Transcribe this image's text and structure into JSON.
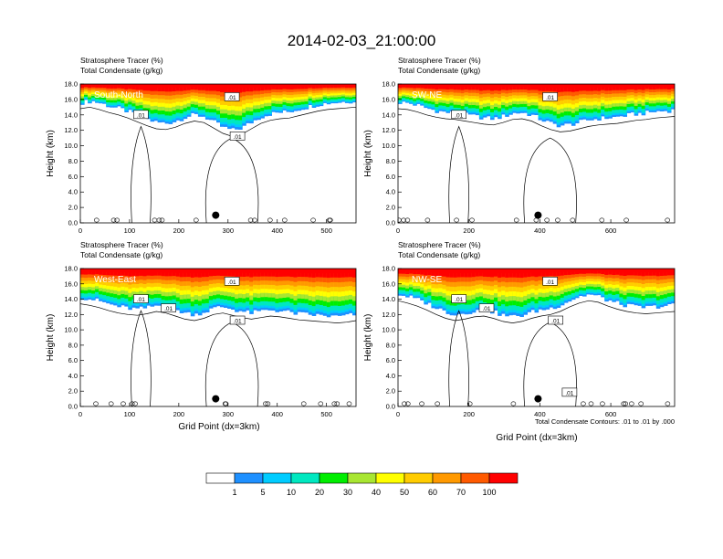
{
  "figure": {
    "title": "2014-02-03_21:00:00",
    "xlabel": "Grid Point (dx=3km)",
    "contour_note": "Total Condensate Contours: .01 to .01 by .000"
  },
  "colorbar": {
    "levels": [
      "1",
      "5",
      "10",
      "20",
      "30",
      "40",
      "50",
      "60",
      "70",
      "100"
    ],
    "colors": [
      "#ffffff",
      "#1e90ff",
      "#00ccff",
      "#00e8c0",
      "#00ee00",
      "#a8e632",
      "#ffff00",
      "#ffcc00",
      "#ff9900",
      "#ff5a00",
      "#ff0000"
    ]
  },
  "chart_data": [
    {
      "type": "heatmap",
      "panel_label": "South-North",
      "title_line1": "Stratosphere Tracer   (%)",
      "title_line2": "Total Condensate   (g/kg)",
      "ylabel": "Height (km)",
      "xlim": [
        0,
        560
      ],
      "ylim": [
        0,
        18
      ],
      "xticks": [
        "0",
        "100",
        "200",
        "300",
        "400",
        "500"
      ],
      "yticks": [
        "0.0",
        "2.0",
        "4.0",
        "6.0",
        "8.0",
        "10.0",
        "12.0",
        "14.0",
        "16.0",
        "18.0"
      ],
      "tropopause_km": [
        15.6,
        15.8,
        15.5,
        15.1,
        14.8,
        14.4,
        13.9,
        13.4,
        13.0,
        12.9,
        13.2,
        13.7,
        14.0,
        13.8,
        13.1,
        12.4,
        12.0,
        12.3,
        13.0,
        13.7,
        14.1,
        14.3,
        14.4,
        14.7,
        15.0,
        15.3,
        15.5,
        15.6,
        15.7,
        15.8
      ],
      "contour_labels": [
        ".01",
        ".01",
        ".01"
      ],
      "marker_x": 275,
      "marker_y": 1.0
    },
    {
      "type": "heatmap",
      "panel_label": "SW-NE",
      "title_line1": "Stratosphere Tracer   (%)",
      "title_line2": "Total Condensate   (g/kg)",
      "ylabel": "Height (km)",
      "xlim": [
        0,
        780
      ],
      "ylim": [
        0,
        18
      ],
      "xticks": [
        "0",
        "200",
        "400",
        "600"
      ],
      "yticks": [
        "0.0",
        "2.0",
        "4.0",
        "6.0",
        "8.0",
        "10.0",
        "12.0",
        "14.0",
        "16.0",
        "18.0"
      ],
      "tropopause_km": [
        15.6,
        15.5,
        15.2,
        14.8,
        14.5,
        14.3,
        14.2,
        14.0,
        13.8,
        13.6,
        13.5,
        13.8,
        14.2,
        14.3,
        14.0,
        13.4,
        12.9,
        12.6,
        12.7,
        13.0,
        13.3,
        13.5,
        13.6,
        13.7,
        13.9,
        14.1,
        14.2,
        14.4,
        14.5,
        14.6
      ],
      "contour_labels": [
        ".01",
        ".01"
      ],
      "marker_x": 395,
      "marker_y": 1.0
    },
    {
      "type": "heatmap",
      "panel_label": "West-East",
      "title_line1": "Stratosphere Tracer   (%)",
      "title_line2": "Total Condensate   (g/kg)",
      "ylabel": "Height (km)",
      "xlim": [
        0,
        560
      ],
      "ylim": [
        0,
        18
      ],
      "xticks": [
        "0",
        "100",
        "200",
        "300",
        "400",
        "500"
      ],
      "yticks": [
        "0.0",
        "2.0",
        "4.0",
        "6.0",
        "8.0",
        "10.0",
        "12.0",
        "14.0",
        "16.0",
        "18.0"
      ],
      "tropopause_km": [
        14.2,
        14.0,
        13.7,
        13.3,
        13.0,
        12.8,
        12.7,
        12.9,
        13.2,
        13.0,
        12.6,
        12.2,
        12.0,
        12.3,
        12.8,
        13.0,
        12.7,
        12.4,
        12.2,
        12.4,
        12.6,
        12.5,
        12.3,
        12.1,
        12.0,
        11.9,
        11.8,
        11.7,
        11.8,
        12.0
      ],
      "contour_labels": [
        ".01",
        ".01",
        ".01",
        ".01"
      ],
      "marker_x": 275,
      "marker_y": 1.0
    },
    {
      "type": "heatmap",
      "panel_label": "NW-SE",
      "title_line1": "Stratosphere Tracer   (%)",
      "title_line2": "Total Condensate   (g/kg)",
      "ylabel": "Height (km)",
      "xlim": [
        0,
        780
      ],
      "ylim": [
        0,
        18
      ],
      "xticks": [
        "0",
        "200",
        "400",
        "600"
      ],
      "yticks": [
        "0.0",
        "2.0",
        "4.0",
        "6.0",
        "8.0",
        "10.0",
        "12.0",
        "14.0",
        "16.0",
        "18.0"
      ],
      "tropopause_km": [
        14.6,
        14.3,
        13.9,
        13.4,
        12.8,
        12.3,
        12.0,
        12.2,
        12.5,
        12.6,
        12.3,
        11.9,
        11.7,
        11.9,
        12.3,
        12.6,
        12.8,
        13.2,
        13.8,
        14.3,
        14.6,
        14.4,
        13.9,
        13.5,
        13.2,
        13.0,
        12.9,
        13.0,
        13.1,
        13.2
      ],
      "contour_labels": [
        ".01",
        ".01",
        ".01",
        ".01",
        ".01"
      ],
      "marker_x": 395,
      "marker_y": 1.0
    }
  ]
}
